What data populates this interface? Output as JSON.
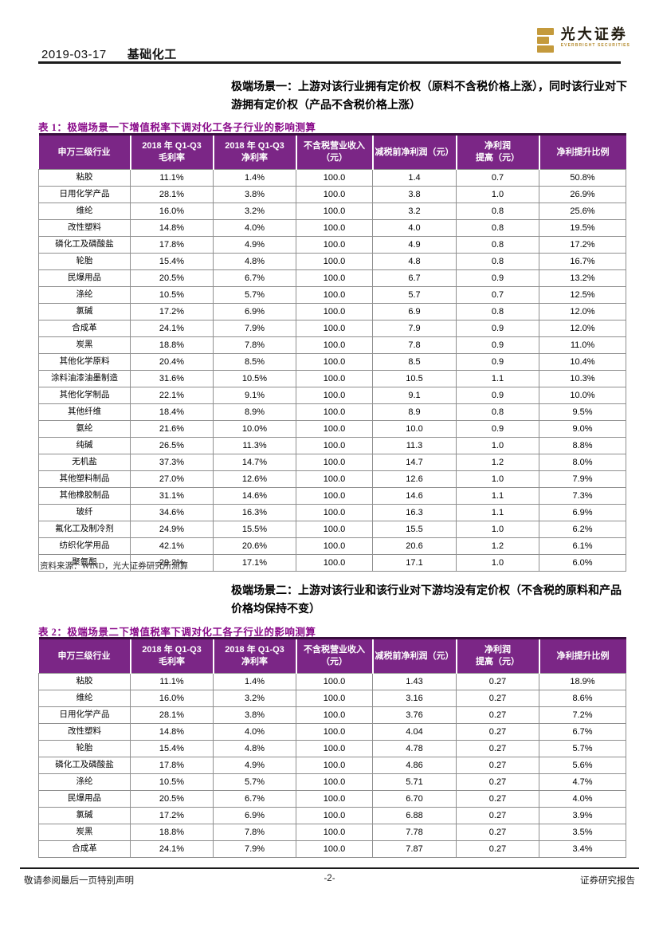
{
  "header": {
    "date": "2019-03-17",
    "category": "基础化工",
    "logo_cn": "光大证券",
    "logo_en": "EVERBRIGHT SECURITIES"
  },
  "colors": {
    "table_header_purple": "#7b2686",
    "caption_purple": "#8a0b8a",
    "logo_gold": "#c49a3c",
    "rule_black": "#1b1b1b"
  },
  "scenario1": "极端场景一：上游对该行业拥有定价权（原料不含税价格上涨），同时该行业对下游拥有定价权（产品不含税价格上涨）",
  "scenario2": "极端场景二：上游对该行业和该行业对下游均没有定价权（不含税的原料和产品价格均保持不变）",
  "table1": {
    "caption": "表 1：极端场景一下增值税率下调对化工各子行业的影响测算",
    "source": "资料来源：WIND，光大证券研究所测算",
    "headers": [
      "申万三级行业",
      "2018 年 Q1-Q3\n毛利率",
      "2018 年 Q1-Q3\n净利率",
      "不含税营业收入\n（元）",
      "减税前净利润（元）",
      "净利润\n提高（元）",
      "净利提升比例"
    ],
    "rows": [
      [
        "粘胶",
        "11.1%",
        "1.4%",
        "100.0",
        "1.4",
        "0.7",
        "50.8%"
      ],
      [
        "日用化学产品",
        "28.1%",
        "3.8%",
        "100.0",
        "3.8",
        "1.0",
        "26.9%"
      ],
      [
        "维纶",
        "16.0%",
        "3.2%",
        "100.0",
        "3.2",
        "0.8",
        "25.6%"
      ],
      [
        "改性塑料",
        "14.8%",
        "4.0%",
        "100.0",
        "4.0",
        "0.8",
        "19.5%"
      ],
      [
        "磷化工及磷酸盐",
        "17.8%",
        "4.9%",
        "100.0",
        "4.9",
        "0.8",
        "17.2%"
      ],
      [
        "轮胎",
        "15.4%",
        "4.8%",
        "100.0",
        "4.8",
        "0.8",
        "16.7%"
      ],
      [
        "民爆用品",
        "20.5%",
        "6.7%",
        "100.0",
        "6.7",
        "0.9",
        "13.2%"
      ],
      [
        "涤纶",
        "10.5%",
        "5.7%",
        "100.0",
        "5.7",
        "0.7",
        "12.5%"
      ],
      [
        "氯碱",
        "17.2%",
        "6.9%",
        "100.0",
        "6.9",
        "0.8",
        "12.0%"
      ],
      [
        "合成革",
        "24.1%",
        "7.9%",
        "100.0",
        "7.9",
        "0.9",
        "12.0%"
      ],
      [
        "炭黑",
        "18.8%",
        "7.8%",
        "100.0",
        "7.8",
        "0.9",
        "11.0%"
      ],
      [
        "其他化学原料",
        "20.4%",
        "8.5%",
        "100.0",
        "8.5",
        "0.9",
        "10.4%"
      ],
      [
        "涂料油漆油墨制造",
        "31.6%",
        "10.5%",
        "100.0",
        "10.5",
        "1.1",
        "10.3%"
      ],
      [
        "其他化学制品",
        "22.1%",
        "9.1%",
        "100.0",
        "9.1",
        "0.9",
        "10.0%"
      ],
      [
        "其他纤维",
        "18.4%",
        "8.9%",
        "100.0",
        "8.9",
        "0.8",
        "9.5%"
      ],
      [
        "氨纶",
        "21.6%",
        "10.0%",
        "100.0",
        "10.0",
        "0.9",
        "9.0%"
      ],
      [
        "纯碱",
        "26.5%",
        "11.3%",
        "100.0",
        "11.3",
        "1.0",
        "8.8%"
      ],
      [
        "无机盐",
        "37.3%",
        "14.7%",
        "100.0",
        "14.7",
        "1.2",
        "8.0%"
      ],
      [
        "其他塑料制品",
        "27.0%",
        "12.6%",
        "100.0",
        "12.6",
        "1.0",
        "7.9%"
      ],
      [
        "其他橡胶制品",
        "31.1%",
        "14.6%",
        "100.0",
        "14.6",
        "1.1",
        "7.3%"
      ],
      [
        "玻纤",
        "34.6%",
        "16.3%",
        "100.0",
        "16.3",
        "1.1",
        "6.9%"
      ],
      [
        "氟化工及制冷剂",
        "24.9%",
        "15.5%",
        "100.0",
        "15.5",
        "1.0",
        "6.2%"
      ],
      [
        "纺织化学用品",
        "42.1%",
        "20.6%",
        "100.0",
        "20.6",
        "1.2",
        "6.1%"
      ],
      [
        "聚氨酯",
        "29.2%",
        "17.1%",
        "100.0",
        "17.1",
        "1.0",
        "6.0%"
      ]
    ]
  },
  "table2": {
    "caption": "表 2：极端场景二下增值税率下调对化工各子行业的影响测算",
    "headers": [
      "申万三级行业",
      "2018 年 Q1-Q3\n毛利率",
      "2018 年 Q1-Q3\n净利率",
      "不含税营业收入\n（元）",
      "减税前净利润（元）",
      "净利润\n提高（元）",
      "净利提升比例"
    ],
    "rows": [
      [
        "粘胶",
        "11.1%",
        "1.4%",
        "100.0",
        "1.43",
        "0.27",
        "18.9%"
      ],
      [
        "维纶",
        "16.0%",
        "3.2%",
        "100.0",
        "3.16",
        "0.27",
        "8.6%"
      ],
      [
        "日用化学产品",
        "28.1%",
        "3.8%",
        "100.0",
        "3.76",
        "0.27",
        "7.2%"
      ],
      [
        "改性塑料",
        "14.8%",
        "4.0%",
        "100.0",
        "4.04",
        "0.27",
        "6.7%"
      ],
      [
        "轮胎",
        "15.4%",
        "4.8%",
        "100.0",
        "4.78",
        "0.27",
        "5.7%"
      ],
      [
        "磷化工及磷酸盐",
        "17.8%",
        "4.9%",
        "100.0",
        "4.86",
        "0.27",
        "5.6%"
      ],
      [
        "涤纶",
        "10.5%",
        "5.7%",
        "100.0",
        "5.71",
        "0.27",
        "4.7%"
      ],
      [
        "民爆用品",
        "20.5%",
        "6.7%",
        "100.0",
        "6.70",
        "0.27",
        "4.0%"
      ],
      [
        "氯碱",
        "17.2%",
        "6.9%",
        "100.0",
        "6.88",
        "0.27",
        "3.9%"
      ],
      [
        "炭黑",
        "18.8%",
        "7.8%",
        "100.0",
        "7.78",
        "0.27",
        "3.5%"
      ],
      [
        "合成革",
        "24.1%",
        "7.9%",
        "100.0",
        "7.87",
        "0.27",
        "3.4%"
      ]
    ]
  },
  "footer": {
    "left": "敬请参阅最后一页特别声明",
    "center": "-2-",
    "right": "证券研究报告"
  }
}
